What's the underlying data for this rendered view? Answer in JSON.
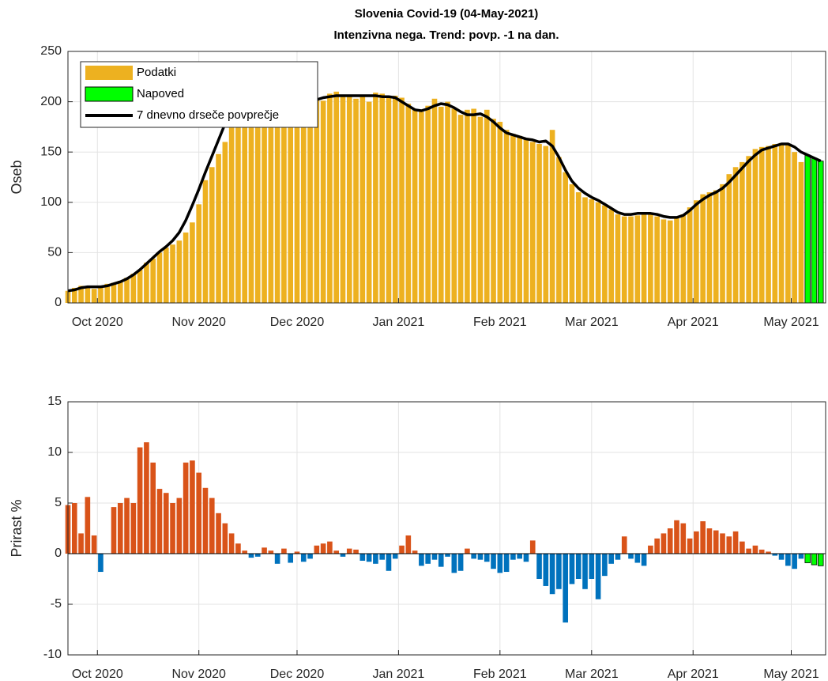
{
  "chart_data": [
    {
      "type": "bar",
      "title": "Slovenia Covid-19 (04-May-2021)",
      "subtitle": "Intenzivna nega. Trend: povp. -1 na dan.",
      "ylabel": "Oseb",
      "xlim": [
        0,
        231.5
      ],
      "xticks": [
        {
          "value": 9,
          "label": "Oct 2020"
        },
        {
          "value": 40,
          "label": "Nov 2020"
        },
        {
          "value": 70,
          "label": "Dec 2020"
        },
        {
          "value": 101,
          "label": "Jan 2021"
        },
        {
          "value": 132,
          "label": "Feb 2021"
        },
        {
          "value": 160,
          "label": "Mar 2021"
        },
        {
          "value": 191,
          "label": "Apr 2021"
        },
        {
          "value": 221,
          "label": "May 2021"
        }
      ],
      "ylim": [
        0,
        250
      ],
      "yticks": [
        0,
        50,
        100,
        150,
        200,
        250
      ],
      "grid": true,
      "legend": "upper left",
      "series": [
        {
          "name": "Podatki",
          "type": "bar",
          "color": "#edb120",
          "x": [
            0,
            2,
            4,
            6,
            8,
            10,
            12,
            14,
            16,
            18,
            20,
            22,
            24,
            26,
            28,
            30,
            32,
            34,
            36,
            38,
            40,
            42,
            44,
            46,
            48,
            50,
            52,
            54,
            56,
            58,
            60,
            62,
            64,
            66,
            68,
            70,
            72,
            74,
            76,
            78,
            80,
            82,
            84,
            86,
            88,
            90,
            92,
            94,
            96,
            98,
            100,
            102,
            104,
            106,
            108,
            110,
            112,
            114,
            116,
            118,
            120,
            122,
            124,
            126,
            128,
            130,
            132,
            134,
            136,
            138,
            140,
            142,
            144,
            146,
            148,
            150,
            152,
            154,
            156,
            158,
            160,
            162,
            164,
            166,
            168,
            170,
            172,
            174,
            176,
            178,
            180,
            182,
            184,
            186,
            188,
            190,
            192,
            194,
            196,
            198,
            200,
            202,
            204,
            206,
            208,
            210,
            212,
            214,
            216,
            218,
            220,
            222,
            224
          ],
          "values": [
            12,
            15,
            17,
            15,
            14,
            17,
            19,
            20,
            22,
            25,
            29,
            33,
            40,
            44,
            50,
            55,
            58,
            62,
            70,
            80,
            98,
            122,
            135,
            148,
            160,
            175,
            180,
            192,
            195,
            190,
            198,
            200,
            198,
            197,
            199,
            200,
            196,
            200,
            203,
            201,
            208,
            210,
            205,
            207,
            203,
            206,
            200,
            209,
            208,
            204,
            206,
            204,
            198,
            192,
            190,
            196,
            203,
            195,
            200,
            193,
            187,
            192,
            193,
            185,
            192,
            183,
            180,
            172,
            168,
            166,
            164,
            160,
            158,
            156,
            172,
            145,
            130,
            118,
            110,
            105,
            103,
            100,
            97,
            93,
            88,
            86,
            86,
            87,
            89,
            88,
            86,
            83,
            82,
            85,
            88,
            95,
            102,
            108,
            110,
            112,
            118,
            128,
            135,
            140,
            146,
            153,
            155,
            156,
            158,
            159,
            157,
            150,
            140
          ]
        },
        {
          "name": "Napoved",
          "type": "bar",
          "color": "#00ff00",
          "edge_color": "#000000",
          "x": [
            226,
            228,
            230
          ],
          "values": [
            147,
            144,
            141
          ]
        },
        {
          "name": "7 dnevno drseče povprečje",
          "type": "line",
          "color": "#000000",
          "x": [
            0,
            2,
            4,
            6,
            8,
            10,
            12,
            14,
            16,
            18,
            20,
            22,
            24,
            26,
            28,
            30,
            32,
            34,
            36,
            38,
            40,
            42,
            44,
            46,
            48,
            50,
            52,
            54,
            56,
            58,
            60,
            62,
            64,
            66,
            68,
            70,
            72,
            74,
            76,
            78,
            80,
            82,
            84,
            86,
            88,
            90,
            92,
            94,
            96,
            98,
            100,
            102,
            104,
            106,
            108,
            110,
            112,
            114,
            116,
            118,
            120,
            122,
            124,
            126,
            128,
            130,
            132,
            134,
            136,
            138,
            140,
            142,
            144,
            146,
            148,
            150,
            152,
            154,
            156,
            158,
            160,
            162,
            164,
            166,
            168,
            170,
            172,
            174,
            176,
            178,
            180,
            182,
            184,
            186,
            188,
            190,
            192,
            194,
            196,
            198,
            200,
            202,
            204,
            206,
            208,
            210,
            212,
            214,
            216,
            218,
            220,
            222,
            224,
            226,
            228,
            230
          ],
          "values": [
            12,
            13,
            15,
            16,
            16,
            16,
            17,
            19,
            21,
            24,
            28,
            33,
            39,
            45,
            51,
            56,
            62,
            70,
            82,
            97,
            113,
            130,
            146,
            162,
            178,
            190,
            196,
            198,
            199,
            198,
            198,
            198,
            198,
            198,
            199,
            199,
            199,
            200,
            202,
            204,
            205,
            206,
            206,
            206,
            206,
            206,
            206,
            206,
            205,
            205,
            204,
            200,
            196,
            192,
            191,
            193,
            196,
            198,
            197,
            194,
            190,
            187,
            187,
            188,
            185,
            180,
            174,
            169,
            167,
            165,
            163,
            162,
            160,
            161,
            156,
            145,
            132,
            121,
            114,
            109,
            105,
            102,
            98,
            94,
            90,
            88,
            88,
            89,
            89,
            89,
            88,
            86,
            85,
            85,
            87,
            92,
            98,
            103,
            107,
            110,
            114,
            120,
            127,
            134,
            141,
            147,
            152,
            154,
            156,
            158,
            158,
            155,
            150,
            147,
            144,
            141
          ]
        }
      ]
    },
    {
      "type": "bar",
      "ylabel": "Prirast %",
      "xlim": [
        0,
        231.5
      ],
      "xticks": [
        {
          "value": 9,
          "label": "Oct 2020"
        },
        {
          "value": 40,
          "label": "Nov 2020"
        },
        {
          "value": 70,
          "label": "Dec 2020"
        },
        {
          "value": 101,
          "label": "Jan 2021"
        },
        {
          "value": 132,
          "label": "Feb 2021"
        },
        {
          "value": 160,
          "label": "Mar 2021"
        },
        {
          "value": 191,
          "label": "Apr 2021"
        },
        {
          "value": 221,
          "label": "May 2021"
        }
      ],
      "ylim": [
        -10,
        15
      ],
      "yticks": [
        -10,
        -5,
        0,
        5,
        10,
        15
      ],
      "grid": true,
      "positive_color": "#d95319",
      "negative_color": "#0072bd",
      "series": [
        {
          "type": "bar",
          "x": [
            0,
            2,
            4,
            6,
            8,
            10,
            12,
            14,
            16,
            18,
            20,
            22,
            24,
            26,
            28,
            30,
            32,
            34,
            36,
            38,
            40,
            42,
            44,
            46,
            48,
            50,
            52,
            54,
            56,
            58,
            60,
            62,
            64,
            66,
            68,
            70,
            72,
            74,
            76,
            78,
            80,
            82,
            84,
            86,
            88,
            90,
            92,
            94,
            96,
            98,
            100,
            102,
            104,
            106,
            108,
            110,
            112,
            114,
            116,
            118,
            120,
            122,
            124,
            126,
            128,
            130,
            132,
            134,
            136,
            138,
            140,
            142,
            144,
            146,
            148,
            150,
            152,
            154,
            156,
            158,
            160,
            162,
            164,
            166,
            168,
            170,
            172,
            174,
            176,
            178,
            180,
            182,
            184,
            186,
            188,
            190,
            192,
            194,
            196,
            198,
            200,
            202,
            204,
            206,
            208,
            210,
            212,
            214,
            216,
            218,
            220,
            222,
            224
          ],
          "values": [
            4.8,
            5,
            2,
            5.6,
            1.8,
            -1.8,
            0,
            4.6,
            5,
            5.5,
            5,
            10.5,
            11,
            9,
            6.4,
            6,
            5,
            5.5,
            9,
            9.2,
            8,
            6.5,
            5.5,
            4,
            3,
            2,
            1,
            0.3,
            -0.4,
            -0.3,
            0.6,
            0.3,
            -1,
            0.5,
            -0.9,
            0.2,
            -0.8,
            -0.5,
            0.8,
            1,
            1.2,
            0.3,
            -0.3,
            0.5,
            0.4,
            -0.7,
            -0.8,
            -1,
            -0.6,
            -1.7,
            -0.5,
            0.8,
            1.8,
            0.3,
            -1.2,
            -1,
            -0.6,
            -1.3,
            -0.3,
            -1.9,
            -1.7,
            0.5,
            -0.5,
            -0.6,
            -0.8,
            -1.5,
            -1.9,
            -1.8,
            -0.6,
            -0.5,
            -0.8,
            1.3,
            -2.5,
            -3.2,
            -4,
            -3.5,
            -6.8,
            -3,
            -2.5,
            -3.5,
            -2.5,
            -4.5,
            -2.2,
            -1,
            -0.6,
            1.7,
            -0.5,
            -0.9,
            -1.2,
            0.8,
            1.5,
            2,
            2.5,
            3.3,
            3,
            1.5,
            2.2,
            3.2,
            2.5,
            2.3,
            2,
            1.7,
            2.2,
            1.2,
            0.5,
            0.8,
            0.4,
            0.2,
            -0.2,
            -0.6,
            -1.2,
            -1.5,
            -0.5
          ]
        },
        {
          "type": "bar",
          "color": "#00ff00",
          "edge_color": "#000000",
          "x": [
            226,
            228,
            230
          ],
          "values": [
            -0.9,
            -1.1,
            -1.2
          ]
        }
      ]
    }
  ]
}
